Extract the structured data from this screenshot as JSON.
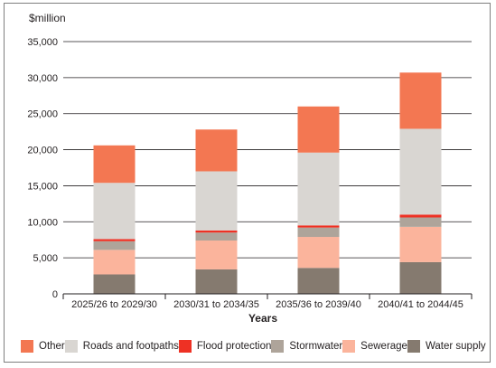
{
  "chart_data": {
    "type": "bar",
    "stacked": true,
    "title": "",
    "ylabel": "$million",
    "xlabel": "Years",
    "ylim": [
      0,
      35000
    ],
    "ytick_values": [
      0,
      5000,
      10000,
      15000,
      20000,
      25000,
      30000,
      35000
    ],
    "ytick_labels": [
      "0",
      "5,000",
      "10,000",
      "15,000",
      "20,000",
      "25,000",
      "30,000",
      "35,000"
    ],
    "grid": true,
    "legend_position": "bottom",
    "categories": [
      "2025/26 to 2029/30",
      "2030/31 to 2034/35",
      "2035/36 to 2039/40",
      "2040/41 to 2044/45"
    ],
    "series": [
      {
        "name": "Water supply",
        "color": "#857a6f",
        "values": [
          2700,
          3400,
          3600,
          4400
        ]
      },
      {
        "name": "Sewerage",
        "color": "#fbb49c",
        "values": [
          3400,
          4000,
          4300,
          4900
        ]
      },
      {
        "name": "Stormwater",
        "color": "#aea49a",
        "values": [
          1200,
          1100,
          1300,
          1300
        ]
      },
      {
        "name": "Flood protection",
        "color": "#ee3124",
        "values": [
          300,
          300,
          300,
          400
        ]
      },
      {
        "name": "Roads and footpaths",
        "color": "#d9d6d2",
        "values": [
          7800,
          8200,
          10100,
          11900
        ]
      },
      {
        "name": "Other",
        "color": "#f37752",
        "values": [
          5200,
          5800,
          6400,
          7800
        ]
      }
    ],
    "legend_order": [
      "Other",
      "Roads and footpaths",
      "Flood protection",
      "Stormwater",
      "Sewerage",
      "Water supply"
    ]
  }
}
